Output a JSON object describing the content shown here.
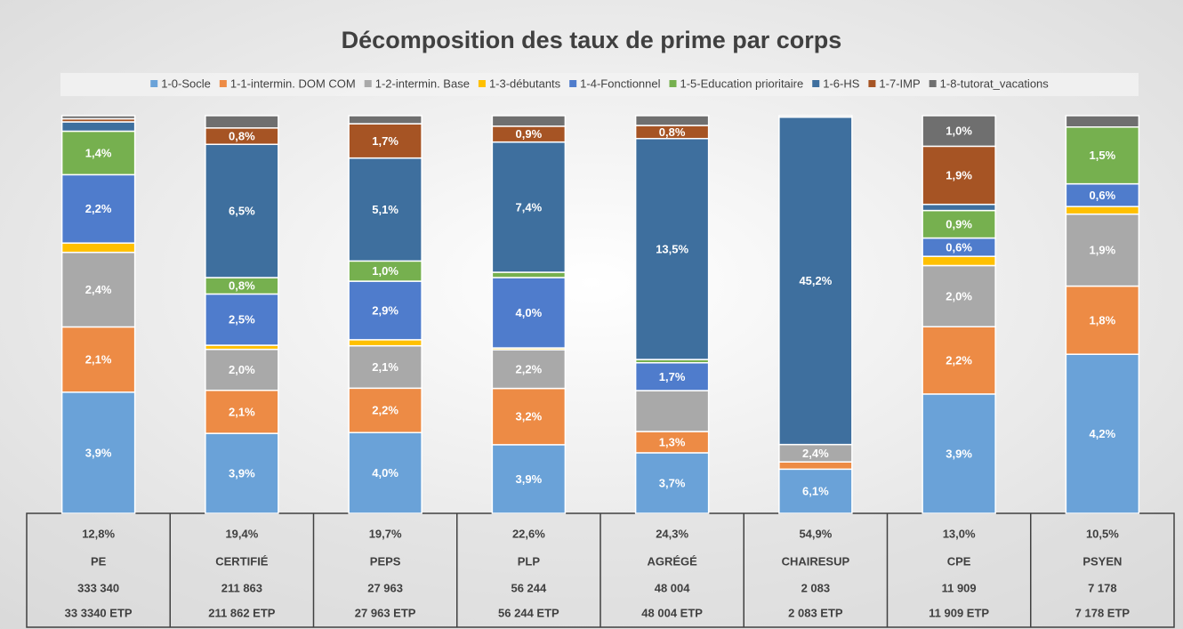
{
  "chart_data": {
    "type": "stacked_bar_100",
    "title": "Décomposition des taux de prime par corps",
    "categories": [
      "PE",
      "CERTIFIÉ",
      "PEPS",
      "PLP",
      "AGRÉGÉ",
      "CHAIRESUP",
      "CPE",
      "PSYEN"
    ],
    "series": [
      {
        "name": "1-0-Socle",
        "color": "#6aa2d8",
        "values": [
          3.9,
          3.9,
          4.0,
          3.9,
          3.7,
          6.1,
          3.9,
          4.2
        ],
        "value_labels": [
          "3,9%",
          "3,9%",
          "4,0%",
          "3,9%",
          "3,7%",
          "6,1%",
          "3,9%",
          "4,2%"
        ]
      },
      {
        "name": "1-1-intermin. DOM COM",
        "color": "#ed8b45",
        "values": [
          2.1,
          2.1,
          2.2,
          3.2,
          1.3,
          1.0,
          2.2,
          1.8
        ],
        "value_labels": [
          "2,1%",
          "2,1%",
          "2,2%",
          "3,2%",
          "1,3%",
          null,
          "2,2%",
          "1,8%"
        ]
      },
      {
        "name": "1-2-intermin. Base",
        "color": "#a9a9a9",
        "values": [
          2.4,
          2.0,
          2.1,
          2.2,
          2.5,
          2.4,
          2.0,
          1.9
        ],
        "value_labels": [
          "2,4%",
          "2,0%",
          "2,1%",
          "2,2%",
          null,
          "2,4%",
          "2,0%",
          "1,9%"
        ]
      },
      {
        "name": "1-3-débutants",
        "color": "#ffc000",
        "values": [
          0.3,
          0.2,
          0.3,
          0.1,
          0,
          0,
          0.3,
          0.2
        ],
        "value_labels": [
          null,
          null,
          null,
          null,
          null,
          null,
          null,
          null
        ]
      },
      {
        "name": "1-4-Fonctionnel",
        "color": "#4f7ccc",
        "values": [
          2.2,
          2.5,
          2.9,
          4.0,
          1.7,
          0,
          0.6,
          0.6
        ],
        "value_labels": [
          "2,2%",
          "2,5%",
          "2,9%",
          "4,0%",
          "1,7%",
          null,
          "0,6%",
          "0,6%"
        ]
      },
      {
        "name": "1-5-Education prioritaire",
        "color": "#76b04f",
        "values": [
          1.4,
          0.8,
          1.0,
          0.3,
          0.2,
          0,
          0.9,
          1.5
        ],
        "value_labels": [
          "1,4%",
          "0,8%",
          "1,0%",
          null,
          null,
          null,
          "0,9%",
          "1,5%"
        ]
      },
      {
        "name": "1-6-HS",
        "color": "#3e6f9e",
        "values": [
          0.3,
          6.5,
          5.1,
          7.4,
          13.5,
          45.2,
          0.2,
          0
        ],
        "value_labels": [
          null,
          "6,5%",
          "5,1%",
          "7,4%",
          "13,5%",
          "45,2%",
          null,
          null
        ]
      },
      {
        "name": "1-7-IMP",
        "color": "#a65424",
        "values": [
          0.1,
          0.8,
          1.7,
          0.9,
          0.8,
          0,
          1.9,
          0
        ],
        "value_labels": [
          null,
          "0,8%",
          "1,7%",
          "0,9%",
          "0,8%",
          null,
          "1,9%",
          null
        ]
      },
      {
        "name": "1-8-tutorat_vacations",
        "color": "#6f6f6f",
        "values": [
          0.1,
          0.6,
          0.4,
          0.6,
          0.6,
          0.2,
          1.0,
          0.3
        ],
        "value_labels": [
          null,
          null,
          null,
          null,
          null,
          null,
          "1,0%",
          null
        ]
      }
    ],
    "table": {
      "totals": [
        "12,8%",
        "19,4%",
        "19,7%",
        "22,6%",
        "24,3%",
        "54,9%",
        "13,0%",
        "10,5%"
      ],
      "counts": [
        "333 340",
        "211 863",
        "27 963",
        "56 244",
        "48 004",
        "2 083",
        "11 909",
        "7 178"
      ],
      "etp": [
        "33 3340 ETP",
        "211 862 ETP",
        "27 963 ETP",
        "56 244 ETP",
        "48 004 ETP",
        "2 083 ETP",
        "11 909 ETP",
        "7 178 ETP"
      ]
    }
  }
}
